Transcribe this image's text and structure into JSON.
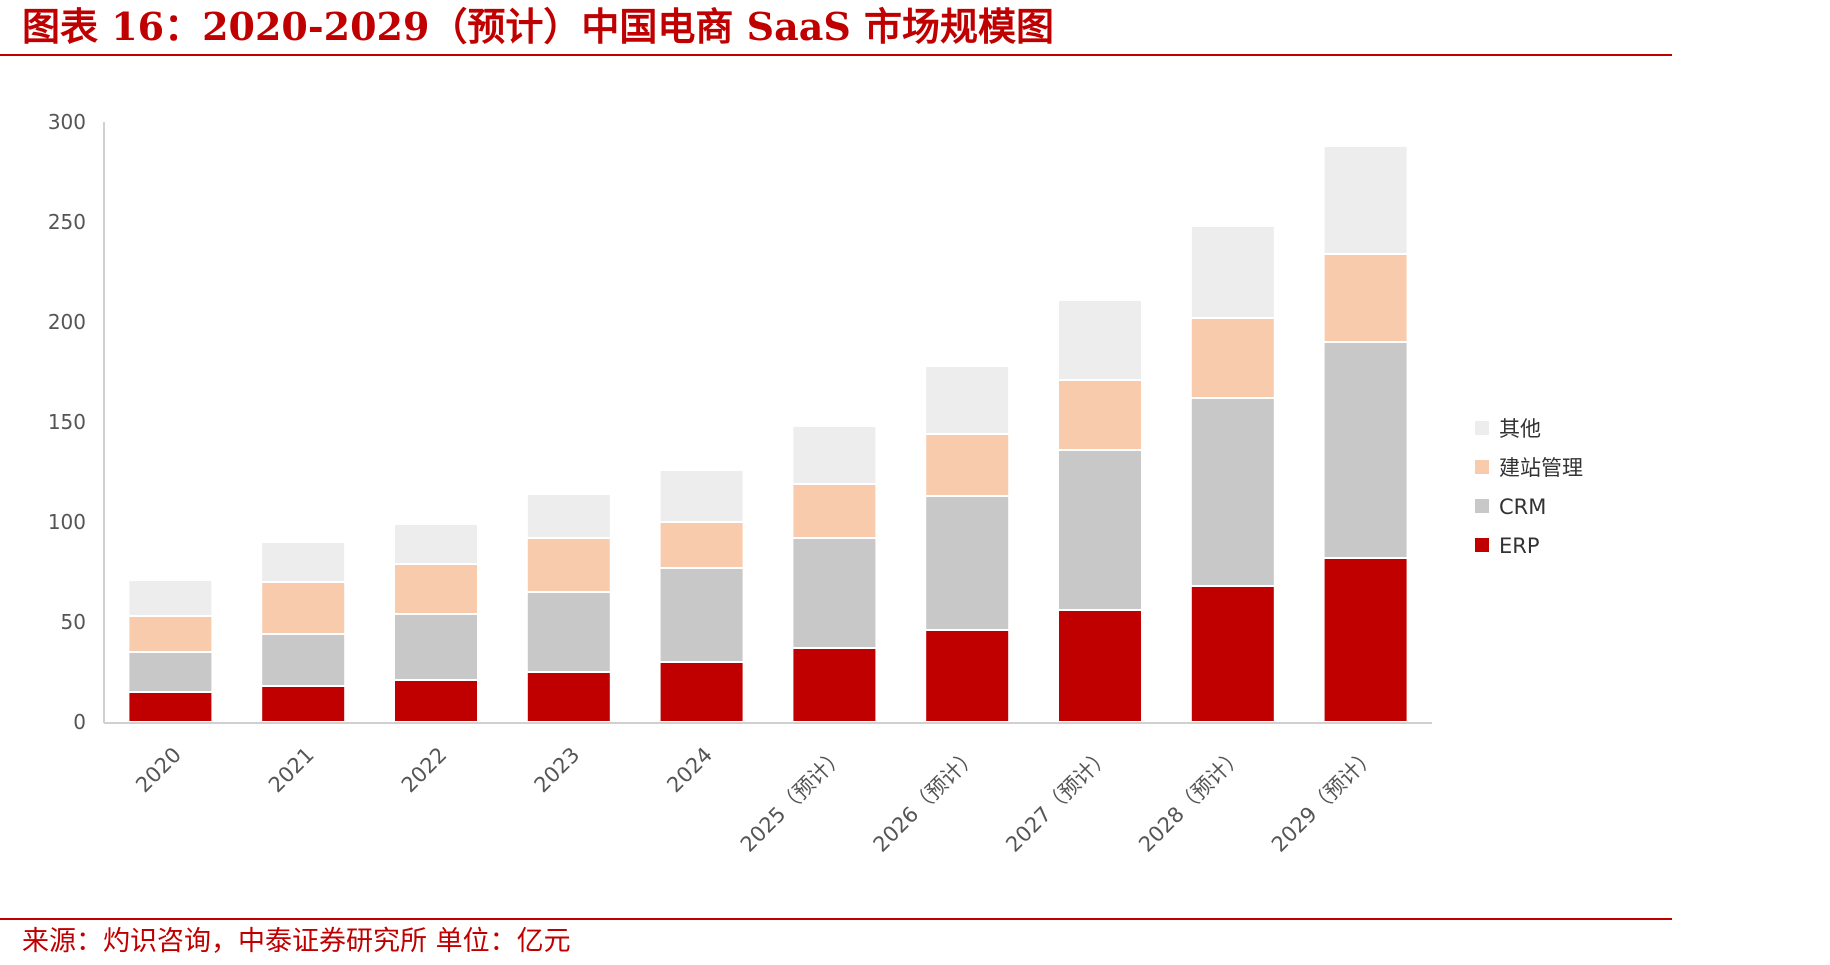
{
  "header": {
    "title": "图表 16：2020-2029（预计）中国电商 SaaS 市场规模图"
  },
  "footer": {
    "source": "来源：灼识咨询，中泰证券研究所    单位：亿元"
  },
  "colors": {
    "accent": "#c00000",
    "ERP": "#c00000",
    "CRM": "#c8c8c8",
    "site": "#f8cbad",
    "other": "#ededed"
  },
  "chart_data": {
    "type": "bar",
    "stacked": true,
    "title": "",
    "xlabel": "",
    "ylabel": "",
    "ylim": [
      0,
      300
    ],
    "yticks": [
      0,
      50,
      100,
      150,
      200,
      250,
      300
    ],
    "grid": false,
    "legend_position": "right",
    "categories": [
      "2020",
      "2021",
      "2022",
      "2023",
      "2024",
      "2025（预计）",
      "2026（预计）",
      "2027（预计）",
      "2028（预计）",
      "2029（预计）"
    ],
    "series": [
      {
        "name": "ERP",
        "color": "#c00000",
        "values": [
          15,
          18,
          21,
          25,
          30,
          37,
          46,
          56,
          68,
          82
        ]
      },
      {
        "name": "CRM",
        "color": "#c8c8c8",
        "values": [
          20,
          26,
          33,
          40,
          47,
          55,
          67,
          80,
          94,
          108
        ]
      },
      {
        "name": "建站管理",
        "color": "#f8cbad",
        "values": [
          18,
          26,
          25,
          27,
          23,
          27,
          31,
          35,
          40,
          44
        ]
      },
      {
        "name": "其他",
        "color": "#ededed",
        "values": [
          18,
          20,
          20,
          22,
          26,
          29,
          34,
          40,
          46,
          54
        ]
      }
    ],
    "legend_order": [
      "其他",
      "建站管理",
      "CRM",
      "ERP"
    ]
  }
}
